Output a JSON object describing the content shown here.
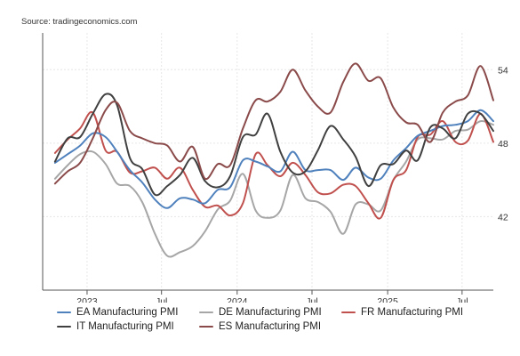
{
  "source": "Source: tradingeconomics.com",
  "colors": {
    "grid": "#e6e6e6",
    "axis": "#555555"
  },
  "chart_data": {
    "type": "line",
    "title": "",
    "xlabel": "",
    "ylabel": "",
    "x_range": [
      "2022-09-15",
      "2025-09-15"
    ],
    "x_ticks": [
      {
        "date": "2023-01-01",
        "label": "2023"
      },
      {
        "date": "2023-07-01",
        "label": "Jul"
      },
      {
        "date": "2024-01-01",
        "label": "2024"
      },
      {
        "date": "2024-07-01",
        "label": "Jul"
      },
      {
        "date": "2025-01-01",
        "label": "2025"
      },
      {
        "date": "2025-07-01",
        "label": "Jul"
      }
    ],
    "y_ticks": [
      42,
      48,
      54
    ],
    "ylim": [
      36,
      57
    ],
    "grid": true,
    "legend_position": "bottom",
    "x": [
      "2022-10",
      "2022-11",
      "2022-12",
      "2023-01",
      "2023-02",
      "2023-03",
      "2023-04",
      "2023-05",
      "2023-06",
      "2023-07",
      "2023-08",
      "2023-09",
      "2023-10",
      "2023-11",
      "2023-12",
      "2024-01",
      "2024-02",
      "2024-03",
      "2024-04",
      "2024-05",
      "2024-06",
      "2024-07",
      "2024-08",
      "2024-09",
      "2024-10",
      "2024-11",
      "2024-12",
      "2025-01",
      "2025-02",
      "2025-03",
      "2025-04",
      "2025-05",
      "2025-06",
      "2025-07",
      "2025-08",
      "2025-09"
    ],
    "series": [
      {
        "name": "EA Manufacturing PMI",
        "color": "#4f81bd",
        "values": [
          46.4,
          47.1,
          47.8,
          48.8,
          48.5,
          47.3,
          45.8,
          44.8,
          43.4,
          42.7,
          43.5,
          43.4,
          43.1,
          44.2,
          44.4,
          46.6,
          46.5,
          46.1,
          45.7,
          47.3,
          45.8,
          45.8,
          45.8,
          45.0,
          46.0,
          45.2,
          45.1,
          46.6,
          47.6,
          48.6,
          49.0,
          49.4,
          49.5,
          49.8,
          50.7,
          49.8
        ]
      },
      {
        "name": "DE Manufacturing PMI",
        "color": "#a6a6a6",
        "values": [
          45.1,
          46.2,
          47.1,
          47.3,
          46.3,
          44.7,
          44.5,
          43.2,
          40.6,
          38.8,
          39.1,
          39.6,
          40.8,
          42.6,
          43.3,
          45.5,
          42.5,
          41.9,
          42.5,
          45.4,
          43.5,
          43.2,
          42.4,
          40.6,
          43.0,
          43.0,
          42.5,
          45.0,
          46.5,
          48.3,
          48.4,
          48.3,
          49.0,
          49.1,
          49.8,
          49.5
        ]
      },
      {
        "name": "FR Manufacturing PMI",
        "color": "#c0504d",
        "values": [
          47.2,
          48.3,
          49.2,
          50.5,
          47.4,
          47.3,
          45.6,
          45.7,
          46.0,
          45.1,
          46.0,
          44.2,
          42.8,
          42.9,
          42.1,
          43.1,
          47.1,
          46.2,
          45.3,
          46.4,
          45.4,
          44.0,
          43.9,
          44.6,
          44.5,
          43.1,
          41.9,
          45.0,
          45.8,
          48.5,
          48.7,
          49.8,
          48.1,
          48.2,
          50.4,
          48.1
        ]
      },
      {
        "name": "IT Manufacturing PMI",
        "color": "#404040",
        "values": [
          46.5,
          48.4,
          48.5,
          50.4,
          52.0,
          51.1,
          46.8,
          45.9,
          43.8,
          44.5,
          45.4,
          46.8,
          44.9,
          44.4,
          45.3,
          48.5,
          48.7,
          50.4,
          47.3,
          45.6,
          45.7,
          47.4,
          49.4,
          48.3,
          46.9,
          44.5,
          46.2,
          46.3,
          47.4,
          46.6,
          49.3,
          49.2,
          48.4,
          50.4,
          50.4,
          49.0
        ]
      },
      {
        "name": "ES Manufacturing PMI",
        "color": "#8b4a4a",
        "values": [
          44.7,
          45.7,
          46.4,
          48.4,
          50.7,
          51.3,
          49.0,
          48.4,
          48.0,
          47.8,
          46.5,
          47.7,
          45.1,
          46.3,
          46.2,
          49.2,
          51.5,
          51.4,
          52.2,
          54.0,
          52.3,
          51.0,
          50.5,
          53.0,
          54.5,
          53.1,
          53.3,
          50.9,
          49.7,
          49.5,
          48.1,
          50.5,
          51.4,
          51.9,
          54.3,
          51.5
        ]
      }
    ]
  }
}
